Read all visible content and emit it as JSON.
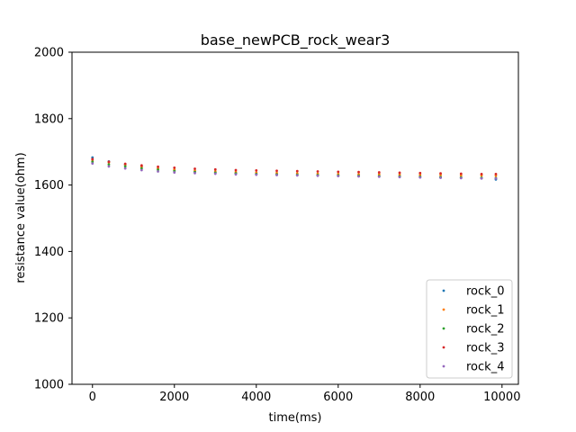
{
  "chart_data": {
    "type": "scatter",
    "title": "base_newPCB_rock_wear3",
    "xlabel": "time(ms)",
    "ylabel": "resistance value(ohm)",
    "xlim": [
      -500,
      10400
    ],
    "ylim": [
      1000,
      2000
    ],
    "xticks": [
      0,
      2000,
      4000,
      6000,
      8000,
      10000
    ],
    "yticks": [
      1000,
      1200,
      1400,
      1600,
      1800,
      2000
    ],
    "grid": false,
    "legend_position": "lower-right",
    "series": [
      {
        "name": "rock_0",
        "color": "#1f77b4",
        "x": [
          0,
          400,
          800,
          1200,
          1600,
          2000,
          2500,
          3000,
          3500,
          4000,
          4500,
          5000,
          5500,
          6000,
          6500,
          7000,
          7500,
          8000,
          8500,
          9000,
          9500,
          9850
        ],
        "y": [
          1683,
          1671,
          1662,
          1655,
          1649,
          1644,
          1640,
          1637,
          1635,
          1633,
          1631,
          1630,
          1629,
          1628,
          1627,
          1626,
          1625,
          1624,
          1623,
          1622,
          1621,
          1617
        ]
      },
      {
        "name": "rock_1",
        "color": "#ff7f0e",
        "x": [
          0,
          400,
          800,
          1200,
          1600,
          2000,
          2500,
          3000,
          3500,
          4000,
          4500,
          5000,
          5500,
          6000,
          6500,
          7000,
          7500,
          8000,
          8500,
          9000,
          9500,
          9850
        ],
        "y": [
          1675,
          1668,
          1661,
          1655,
          1650,
          1646,
          1643,
          1641,
          1639,
          1637,
          1636,
          1635,
          1634,
          1633,
          1632,
          1632,
          1631,
          1630,
          1630,
          1629,
          1629,
          1628
        ]
      },
      {
        "name": "rock_2",
        "color": "#2ca02c",
        "x": [
          0,
          400,
          800,
          1200,
          1600,
          2000,
          2500,
          3000,
          3500,
          4000,
          4500,
          5000,
          5500,
          6000,
          6500,
          7000,
          7500,
          8000,
          8500,
          9000,
          9500,
          9850
        ],
        "y": [
          1670,
          1662,
          1656,
          1650,
          1646,
          1642,
          1639,
          1637,
          1635,
          1633,
          1632,
          1631,
          1630,
          1629,
          1628,
          1627,
          1626,
          1625,
          1624,
          1623,
          1622,
          1621
        ]
      },
      {
        "name": "rock_3",
        "color": "#d62728",
        "x": [
          0,
          400,
          800,
          1200,
          1600,
          2000,
          2500,
          3000,
          3500,
          4000,
          4500,
          5000,
          5500,
          6000,
          6500,
          7000,
          7500,
          8000,
          8500,
          9000,
          9500,
          9850
        ],
        "y": [
          1678,
          1670,
          1664,
          1659,
          1655,
          1652,
          1649,
          1647,
          1645,
          1644,
          1643,
          1642,
          1641,
          1640,
          1639,
          1638,
          1637,
          1636,
          1635,
          1634,
          1633,
          1633
        ]
      },
      {
        "name": "rock_4",
        "color": "#9467bd",
        "x": [
          0,
          400,
          800,
          1200,
          1600,
          2000,
          2500,
          3000,
          3500,
          4000,
          4500,
          5000,
          5500,
          6000,
          6500,
          7000,
          7500,
          8000,
          8500,
          9000,
          9500,
          9850
        ],
        "y": [
          1665,
          1656,
          1650,
          1645,
          1641,
          1638,
          1636,
          1634,
          1632,
          1631,
          1630,
          1629,
          1628,
          1627,
          1626,
          1625,
          1624,
          1623,
          1622,
          1621,
          1620,
          1620
        ]
      }
    ]
  }
}
